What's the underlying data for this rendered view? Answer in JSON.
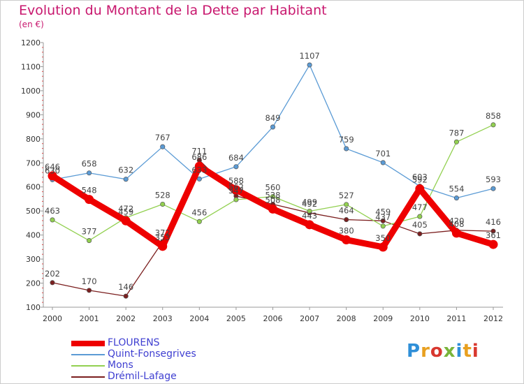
{
  "header": {
    "title": "Evolution du Montant de la Dette par Habitant",
    "unit": "(en €)"
  },
  "logo": {
    "text": "Proxiti",
    "colors": [
      "#2f8fd8",
      "#e8a020",
      "#d8382f",
      "#79b43a",
      "#2f8fd8",
      "#e8a020",
      "#d8382f"
    ]
  },
  "chart_data": {
    "type": "line",
    "title": "Evolution du Montant de la Dette par Habitant",
    "ylabel": "(en €)",
    "xlabel": "",
    "x": [
      "2000",
      "2001",
      "2002",
      "2003",
      "2004",
      "2005",
      "2006",
      "2007",
      "2008",
      "2009",
      "2010",
      "2011",
      "2012"
    ],
    "ylim": [
      100,
      1200
    ],
    "yticks": [
      "100",
      "200",
      "300",
      "400",
      "500",
      "600",
      "700",
      "800",
      "900",
      "1000",
      "1100",
      "1200"
    ],
    "grid": false,
    "legend_position": "bottom-left",
    "series": [
      {
        "name": "FLOURENS",
        "color": "#ee0000",
        "values": [
          646,
          548,
          459,
          353,
          686,
          588,
          508,
          443,
          380,
          350,
          592,
          408,
          361
        ],
        "labels": [
          "646",
          "548",
          "459",
          "353",
          "686",
          "588",
          "508",
          "443",
          "380",
          "350",
          "592",
          "408",
          "361"
        ]
      },
      {
        "name": "Quint-Fonsegrives",
        "color": "#5b9bd5",
        "values": [
          630,
          658,
          632,
          767,
          633,
          684,
          849,
          1107,
          759,
          701,
          603,
          554,
          593
        ],
        "labels": [
          "630",
          "658",
          "632",
          "767",
          "633",
          "684",
          "849",
          "1107",
          "759",
          "701",
          "603",
          "554",
          "593"
        ]
      },
      {
        "name": "Mons",
        "color": "#92d050",
        "values": [
          463,
          377,
          472,
          528,
          456,
          547,
          560,
          499,
          527,
          437,
          477,
          787,
          858
        ],
        "labels": [
          "463",
          "377",
          "472",
          "528",
          "456",
          "547",
          "560",
          "499",
          "527",
          "437",
          "477",
          "787",
          "858"
        ]
      },
      {
        "name": "Drémil-Lafage",
        "color": "#7b1f1f",
        "values": [
          202,
          170,
          146,
          372,
          711,
          562,
          528,
          492,
          464,
          459,
          405,
          420,
          416
        ],
        "labels": [
          "202",
          "170",
          "146",
          "372",
          "711",
          "562",
          "528",
          "492",
          "464",
          "459",
          "405",
          "420",
          "416"
        ]
      }
    ]
  }
}
